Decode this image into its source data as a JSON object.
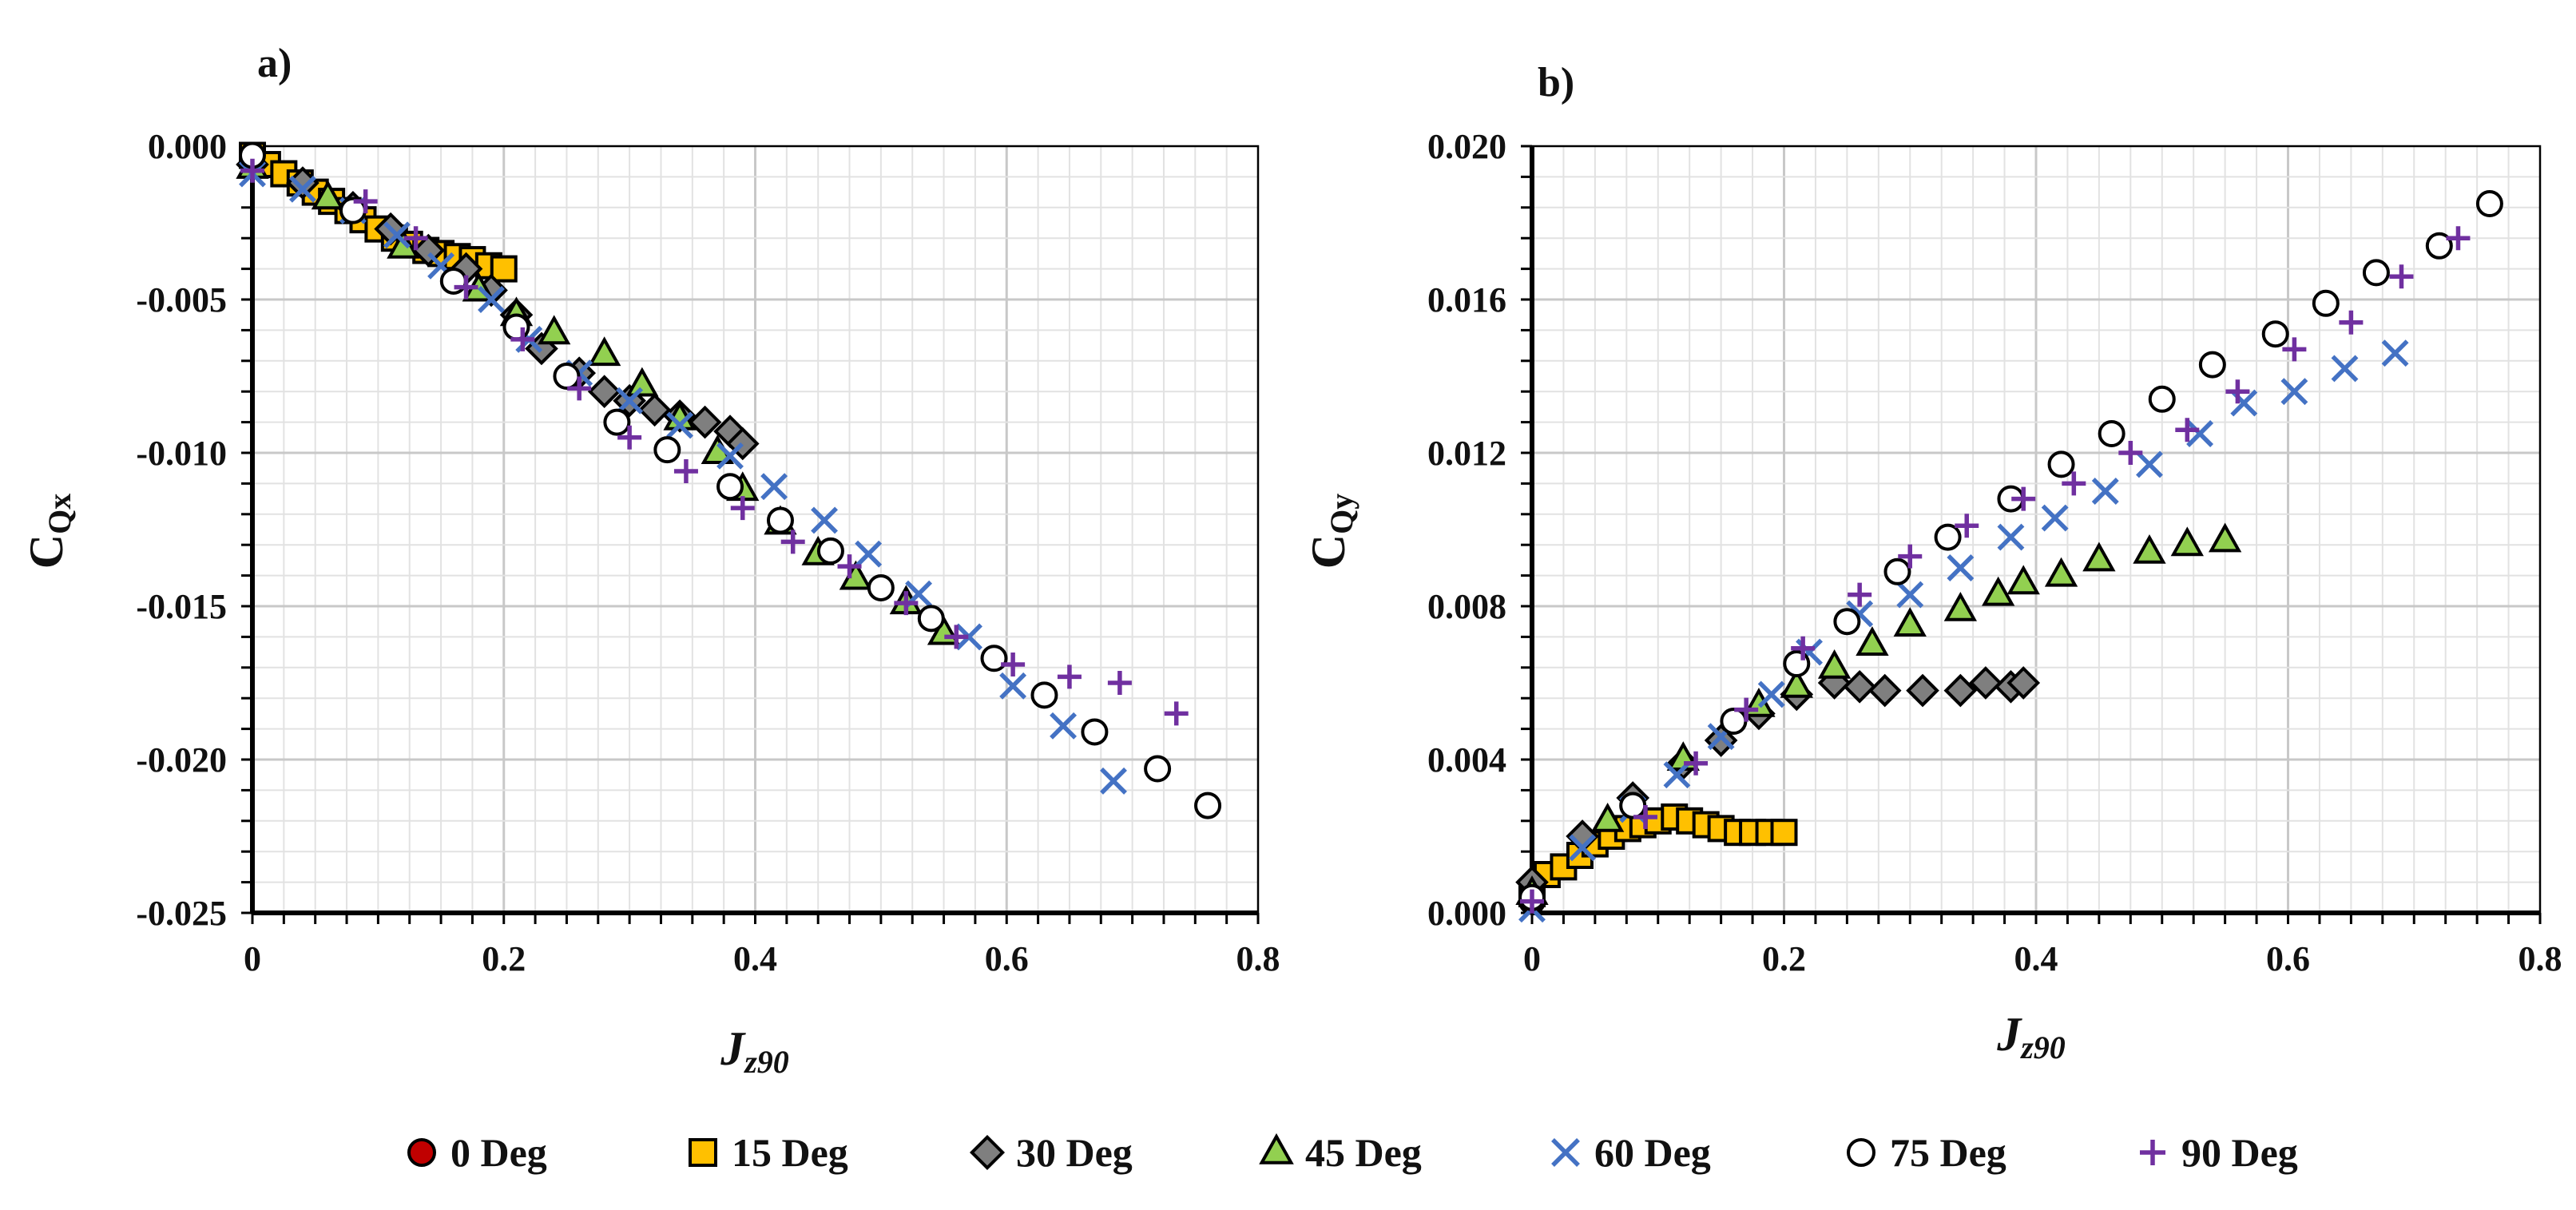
{
  "series_styles": [
    {
      "name": "0 Deg",
      "marker": "circle-filled",
      "fill": "#c00000",
      "stroke": "#000000"
    },
    {
      "name": "15 Deg",
      "marker": "square",
      "fill": "#ffc000",
      "stroke": "#000000"
    },
    {
      "name": "30 Deg",
      "marker": "diamond",
      "fill": "#7f7f7f",
      "stroke": "#000000"
    },
    {
      "name": "45 Deg",
      "marker": "triangle",
      "fill": "#92d050",
      "stroke": "#000000"
    },
    {
      "name": "60 Deg",
      "marker": "x",
      "fill": "none",
      "stroke": "#4472c4"
    },
    {
      "name": "75 Deg",
      "marker": "circle-open",
      "fill": "#ffffff",
      "stroke": "#000000"
    },
    {
      "name": "90 Deg",
      "marker": "plus",
      "fill": "none",
      "stroke": "#7030a0"
    }
  ],
  "legend": {
    "entries": [
      "0 Deg",
      "15 Deg",
      "30 Deg",
      "45 Deg",
      "60 Deg",
      "75 Deg",
      "90 Deg"
    ],
    "placement": "bottom"
  },
  "chart_data": [
    {
      "type": "scatter",
      "panel_label": "a)",
      "title": "",
      "xlabel": "J",
      "xlabel_sub": "z90",
      "ylabel": "C",
      "ylabel_sub": "Qx",
      "xlim": [
        0,
        0.8
      ],
      "ylim": [
        -0.025,
        0.0
      ],
      "xticks": [
        "0",
        "0.2",
        "0.4",
        "0.6",
        "0.8"
      ],
      "yticks": [
        "0.000",
        "-0.005",
        "-0.010",
        "-0.015",
        "-0.020",
        "-0.025"
      ],
      "xtick_values": [
        0,
        0.2,
        0.4,
        0.6,
        0.8
      ],
      "ytick_values": [
        0.0,
        -0.005,
        -0.01,
        -0.015,
        -0.02,
        -0.025
      ],
      "grid": true,
      "series": [
        {
          "name": "0 Deg",
          "x": [
            0.0
          ],
          "y": [
            -0.0003
          ]
        },
        {
          "name": "15 Deg",
          "x": [
            0.0,
            0.012,
            0.025,
            0.038,
            0.05,
            0.063,
            0.076,
            0.088,
            0.1,
            0.113,
            0.125,
            0.138,
            0.15,
            0.163,
            0.175,
            0.188,
            0.2
          ],
          "y": [
            -0.0003,
            -0.0006,
            -0.0009,
            -0.0012,
            -0.0015,
            -0.0018,
            -0.0021,
            -0.0024,
            -0.0027,
            -0.003,
            -0.0032,
            -0.0034,
            -0.0035,
            -0.0036,
            -0.0037,
            -0.0039,
            -0.004
          ]
        },
        {
          "name": "30 Deg",
          "x": [
            0.0,
            0.04,
            0.08,
            0.11,
            0.14,
            0.17,
            0.19,
            0.21,
            0.23,
            0.26,
            0.28,
            0.3,
            0.32,
            0.34,
            0.36,
            0.38,
            0.39
          ],
          "y": [
            -0.0006,
            -0.0012,
            -0.002,
            -0.0027,
            -0.0034,
            -0.004,
            -0.0047,
            -0.0055,
            -0.0066,
            -0.0074,
            -0.008,
            -0.0083,
            -0.0086,
            -0.0088,
            -0.009,
            -0.0093,
            -0.0097
          ]
        },
        {
          "name": "45 Deg",
          "x": [
            0.0,
            0.06,
            0.12,
            0.18,
            0.21,
            0.24,
            0.28,
            0.31,
            0.34,
            0.37,
            0.39,
            0.42,
            0.45,
            0.48,
            0.52,
            0.55
          ],
          "y": [
            -0.0007,
            -0.0017,
            -0.0033,
            -0.0047,
            -0.0055,
            -0.0061,
            -0.0068,
            -0.0078,
            -0.0089,
            -0.01,
            -0.0112,
            -0.0123,
            -0.0133,
            -0.0141,
            -0.0149,
            -0.0159
          ]
        },
        {
          "name": "60 Deg",
          "x": [
            0.0,
            0.04,
            0.08,
            0.115,
            0.15,
            0.19,
            0.22,
            0.26,
            0.3,
            0.34,
            0.38,
            0.415,
            0.455,
            0.49,
            0.53,
            0.57,
            0.605,
            0.645,
            0.685
          ],
          "y": [
            -0.0009,
            -0.0014,
            -0.0021,
            -0.0029,
            -0.0039,
            -0.005,
            -0.0063,
            -0.0074,
            -0.0083,
            -0.0091,
            -0.0101,
            -0.0111,
            -0.0122,
            -0.0133,
            -0.0146,
            -0.016,
            -0.0176,
            -0.0189,
            -0.0207
          ]
        },
        {
          "name": "75 Deg",
          "x": [
            0.0,
            0.08,
            0.16,
            0.21,
            0.25,
            0.29,
            0.33,
            0.38,
            0.42,
            0.46,
            0.5,
            0.54,
            0.59,
            0.63,
            0.67,
            0.72,
            0.76
          ],
          "y": [
            -0.0003,
            -0.0021,
            -0.0044,
            -0.0059,
            -0.0075,
            -0.009,
            -0.0099,
            -0.0111,
            -0.0122,
            -0.0132,
            -0.0144,
            -0.0154,
            -0.0167,
            -0.0179,
            -0.0191,
            -0.0203,
            -0.0215
          ]
        },
        {
          "name": "90 Deg",
          "x": [
            0.0,
            0.09,
            0.13,
            0.17,
            0.215,
            0.26,
            0.3,
            0.345,
            0.39,
            0.43,
            0.475,
            0.52,
            0.56,
            0.605,
            0.65,
            0.69,
            0.735
          ],
          "y": [
            -0.0008,
            -0.0018,
            -0.003,
            -0.0046,
            -0.0063,
            -0.0079,
            -0.0095,
            -0.0106,
            -0.0118,
            -0.0129,
            -0.0137,
            -0.0149,
            -0.016,
            -0.0169,
            -0.0173,
            -0.0175,
            -0.0185
          ]
        }
      ]
    },
    {
      "type": "scatter",
      "panel_label": "b)",
      "title": "",
      "xlabel": "J",
      "xlabel_sub": "z90",
      "ylabel": "C",
      "ylabel_sub": "Qy",
      "xlim": [
        0,
        0.8
      ],
      "ylim": [
        0.0,
        0.02
      ],
      "xticks": [
        "0",
        "0.2",
        "0.4",
        "0.6",
        "0.8"
      ],
      "yticks": [
        "0.000",
        "0.004",
        "0.008",
        "0.012",
        "0.016",
        "0.020"
      ],
      "xtick_values": [
        0,
        0.2,
        0.4,
        0.6,
        0.8
      ],
      "ytick_values": [
        0.0,
        0.004,
        0.008,
        0.012,
        0.016,
        0.02
      ],
      "grid": true,
      "series": [
        {
          "name": "0 Deg",
          "x": [
            0.0
          ],
          "y": [
            0.0003
          ]
        },
        {
          "name": "15 Deg",
          "x": [
            0.0,
            0.012,
            0.025,
            0.038,
            0.05,
            0.063,
            0.076,
            0.088,
            0.1,
            0.113,
            0.125,
            0.138,
            0.15,
            0.163,
            0.175,
            0.188,
            0.2
          ],
          "y": [
            0.0005,
            0.001,
            0.0012,
            0.0015,
            0.0018,
            0.002,
            0.0022,
            0.0023,
            0.0024,
            0.0025,
            0.0024,
            0.0023,
            0.0022,
            0.0021,
            0.0021,
            0.0021,
            0.0021
          ]
        },
        {
          "name": "30 Deg",
          "x": [
            0.0,
            0.04,
            0.08,
            0.12,
            0.15,
            0.18,
            0.21,
            0.24,
            0.26,
            0.28,
            0.31,
            0.34,
            0.36,
            0.38,
            0.39
          ],
          "y": [
            0.0008,
            0.002,
            0.003,
            0.0039,
            0.0045,
            0.0052,
            0.0057,
            0.006,
            0.0059,
            0.0058,
            0.0058,
            0.0058,
            0.006,
            0.0059,
            0.006
          ]
        },
        {
          "name": "45 Deg",
          "x": [
            0.0,
            0.06,
            0.12,
            0.18,
            0.21,
            0.24,
            0.27,
            0.3,
            0.34,
            0.37,
            0.39,
            0.42,
            0.45,
            0.49,
            0.52,
            0.55
          ],
          "y": [
            0.0005,
            0.0024,
            0.004,
            0.0054,
            0.0059,
            0.0064,
            0.007,
            0.0075,
            0.0079,
            0.0083,
            0.0086,
            0.0088,
            0.0092,
            0.0094,
            0.0096,
            0.0097
          ]
        },
        {
          "name": "60 Deg",
          "x": [
            0.0,
            0.04,
            0.08,
            0.115,
            0.15,
            0.19,
            0.22,
            0.26,
            0.3,
            0.34,
            0.38,
            0.415,
            0.455,
            0.49,
            0.53,
            0.565,
            0.605,
            0.645,
            0.685
          ],
          "y": [
            0.0001,
            0.0017,
            0.0027,
            0.0036,
            0.0046,
            0.0057,
            0.0068,
            0.0078,
            0.0083,
            0.009,
            0.0098,
            0.0103,
            0.011,
            0.0117,
            0.0125,
            0.0133,
            0.0136,
            0.0142,
            0.0146
          ]
        },
        {
          "name": "75 Deg",
          "x": [
            0.0,
            0.08,
            0.16,
            0.21,
            0.25,
            0.29,
            0.33,
            0.38,
            0.42,
            0.46,
            0.5,
            0.54,
            0.59,
            0.63,
            0.67,
            0.72,
            0.76
          ],
          "y": [
            0.0004,
            0.0028,
            0.005,
            0.0065,
            0.0076,
            0.0089,
            0.0098,
            0.0108,
            0.0117,
            0.0125,
            0.0134,
            0.0143,
            0.0151,
            0.0159,
            0.0167,
            0.0174,
            0.0185
          ]
        },
        {
          "name": "90 Deg",
          "x": [
            0.0,
            0.09,
            0.13,
            0.17,
            0.215,
            0.26,
            0.3,
            0.345,
            0.39,
            0.43,
            0.475,
            0.52,
            0.56,
            0.605,
            0.65,
            0.69,
            0.735
          ],
          "y": [
            0.0003,
            0.0025,
            0.0039,
            0.0053,
            0.0069,
            0.0083,
            0.0093,
            0.0101,
            0.0108,
            0.0112,
            0.012,
            0.0126,
            0.0136,
            0.0147,
            0.0154,
            0.0166,
            0.0176
          ]
        }
      ]
    }
  ]
}
